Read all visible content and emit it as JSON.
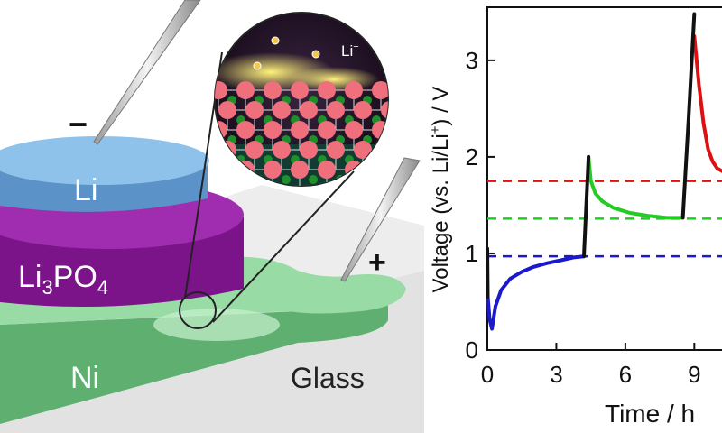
{
  "illustration": {
    "labels": {
      "li": "Li",
      "electrolyte_main": "Li",
      "electrolyte_sub1": "3",
      "electrolyte_mid": "PO",
      "electrolyte_sub2": "4",
      "ni": "Ni",
      "glass": "Glass",
      "minus": "−",
      "plus": "+",
      "ion_main": "Li",
      "ion_sup": "+"
    },
    "colors": {
      "li_disk": "#6fa6d6",
      "electrolyte": "#8b1f9a",
      "ni_layer": "#8fd69a",
      "glass": "#e6e6e6",
      "atom_large": "#ef6f7c",
      "atom_small": "#1f8f2a",
      "glow": "#f7e84a"
    }
  },
  "chart_data": {
    "type": "line",
    "ylabel_parts": {
      "a": "Voltage (vs. Li/Li",
      "sup": "+",
      "b": ") / V"
    },
    "xlabel": "Time / h",
    "xticks": [
      "0",
      "3",
      "6",
      "9"
    ],
    "yticks": [
      "0",
      "1",
      "2",
      "3"
    ],
    "xlim": [
      0,
      10.4
    ],
    "ylim": [
      0,
      3.55
    ],
    "reference_lines": [
      {
        "y": 0.97,
        "color": "#1a1acc",
        "style": "dashed"
      },
      {
        "y": 1.36,
        "color": "#22cc22",
        "style": "dashed"
      },
      {
        "y": 1.75,
        "color": "#dd1111",
        "style": "dashed"
      }
    ],
    "series": [
      {
        "color": "#1a1acc",
        "x": [
          0.02,
          0.1,
          0.2,
          0.35,
          0.6,
          1.0,
          1.5,
          2.0,
          2.6,
          3.2,
          3.8,
          4.2
        ],
        "y": [
          0.55,
          0.32,
          0.22,
          0.45,
          0.62,
          0.74,
          0.81,
          0.86,
          0.9,
          0.93,
          0.96,
          0.97
        ]
      },
      {
        "color": "#22cc22",
        "x": [
          4.4,
          4.5,
          4.7,
          5.0,
          5.5,
          6.2,
          7.0,
          7.8,
          8.5
        ],
        "y": [
          2.0,
          1.75,
          1.62,
          1.54,
          1.47,
          1.42,
          1.39,
          1.37,
          1.37
        ]
      },
      {
        "color": "#dd1111",
        "x": [
          9.0,
          9.2,
          9.4,
          9.6,
          9.8,
          10.0,
          10.3
        ],
        "y": [
          3.25,
          2.75,
          2.35,
          2.08,
          1.95,
          1.88,
          1.84
        ]
      },
      {
        "color": "#111111",
        "x": [
          0.0,
          0.02
        ],
        "y": [
          1.05,
          0.55
        ]
      },
      {
        "color": "#111111",
        "x": [
          4.2,
          4.3,
          4.4
        ],
        "y": [
          0.97,
          1.5,
          2.0
        ]
      },
      {
        "color": "#111111",
        "x": [
          8.5,
          8.75,
          9.0
        ],
        "y": [
          1.37,
          2.4,
          3.48
        ]
      }
    ]
  }
}
